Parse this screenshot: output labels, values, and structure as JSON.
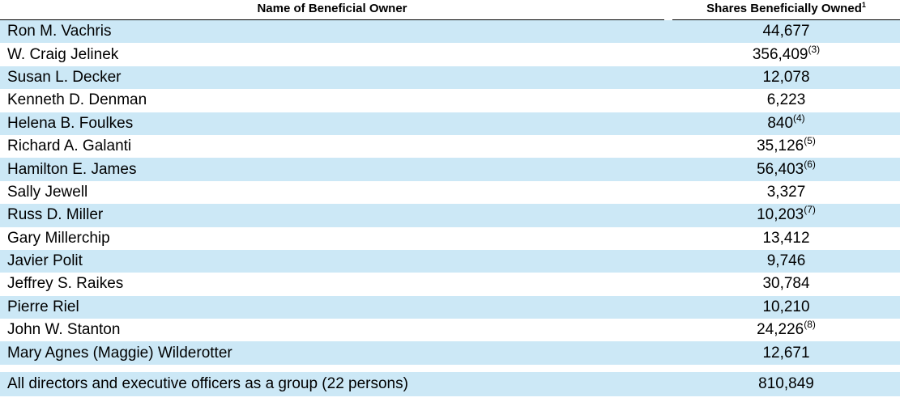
{
  "header": {
    "name_col": "Name of Beneficial Owner",
    "shares_col": "Shares Beneficially Owned",
    "shares_col_note": "1"
  },
  "rows": [
    {
      "name": "Ron M. Vachris",
      "shares": "44,677",
      "note": ""
    },
    {
      "name": "W. Craig Jelinek",
      "shares": "356,409",
      "note": "(3)"
    },
    {
      "name": "Susan L. Decker",
      "shares": "12,078",
      "note": ""
    },
    {
      "name": "Kenneth D. Denman",
      "shares": "6,223",
      "note": ""
    },
    {
      "name": "Helena B. Foulkes",
      "shares": "840",
      "note": "(4)"
    },
    {
      "name": "Richard A. Galanti",
      "shares": "35,126",
      "note": "(5)"
    },
    {
      "name": "Hamilton E. James",
      "shares": "56,403",
      "note": "(6)"
    },
    {
      "name": "Sally Jewell",
      "shares": "3,327",
      "note": ""
    },
    {
      "name": "Russ D. Miller",
      "shares": "10,203",
      "note": "(7)"
    },
    {
      "name": "Gary Millerchip",
      "shares": "13,412",
      "note": ""
    },
    {
      "name": "Javier Polit",
      "shares": "9,746",
      "note": ""
    },
    {
      "name": "Jeffrey S. Raikes",
      "shares": "30,784",
      "note": ""
    },
    {
      "name": "Pierre Riel",
      "shares": "10,210",
      "note": ""
    },
    {
      "name": "John W. Stanton",
      "shares": "24,226",
      "note": "(8)"
    },
    {
      "name": "Mary Agnes (Maggie) Wilderotter",
      "shares": "12,671",
      "note": ""
    }
  ],
  "total": {
    "name": "All directors and executive officers as a group (22 persons)",
    "shares": "810,849"
  },
  "colors": {
    "shade": "#cce8f6",
    "text": "#000000"
  }
}
